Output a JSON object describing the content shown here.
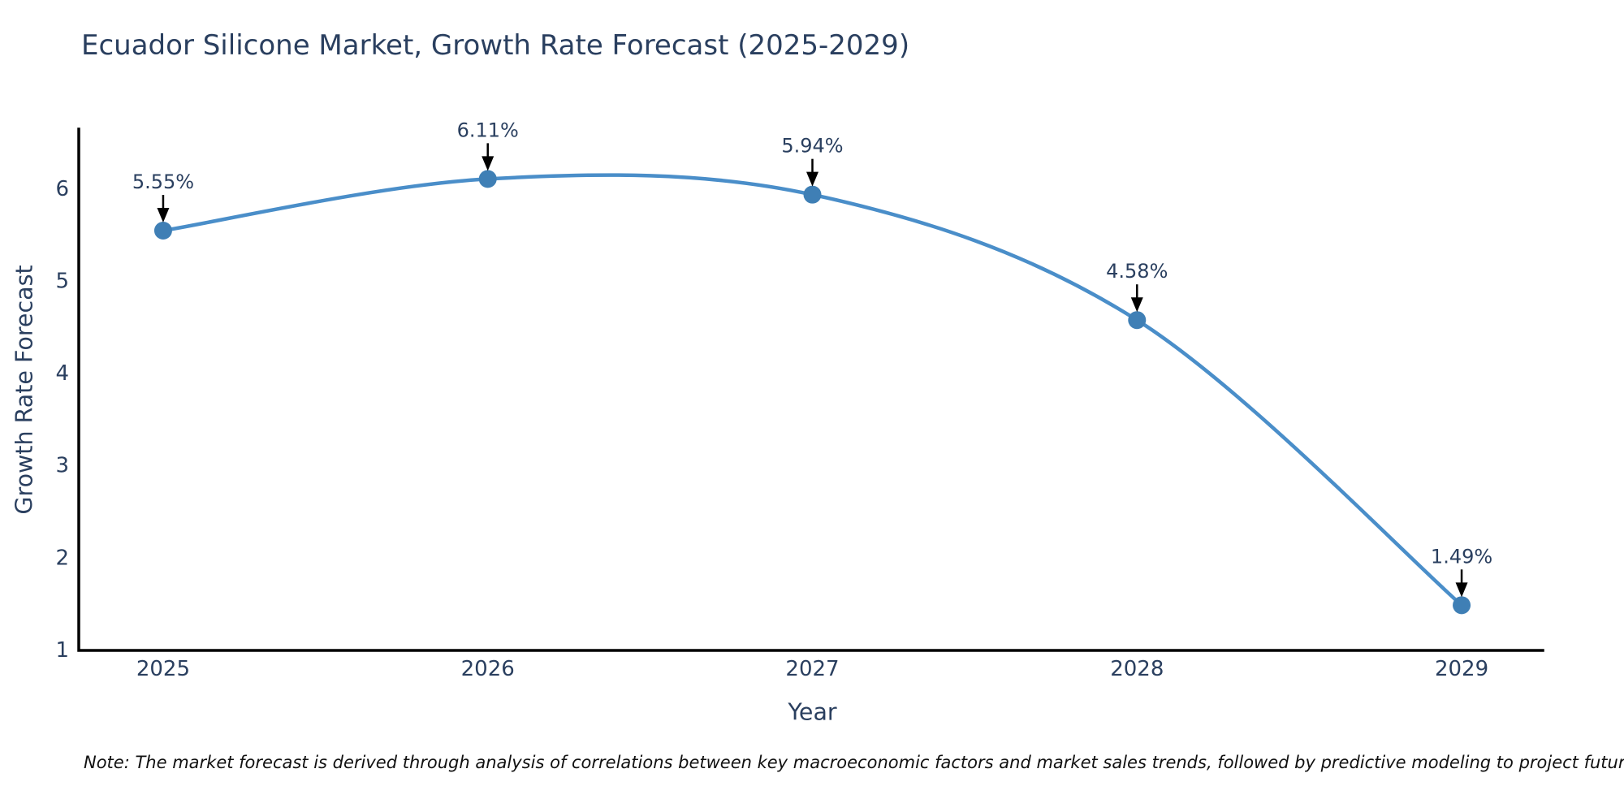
{
  "title": "Ecuador Silicone Market, Growth Rate Forecast (2025-2029)",
  "note": "Note: The market forecast is derived through analysis of correlations between key macroeconomic factors and market sales trends, followed by predictive modeling to project future sales.",
  "chart_data": {
    "type": "line",
    "line_shape": "spline",
    "title": "Ecuador Silicone Market, Growth Rate Forecast (2025-2029)",
    "xlabel": "Year",
    "ylabel": "Growth Rate Forecast",
    "x": [
      2025,
      2026,
      2027,
      2028,
      2029
    ],
    "y": [
      5.55,
      6.11,
      5.94,
      4.58,
      1.49
    ],
    "point_labels": [
      "5.55%",
      "6.11%",
      "5.94%",
      "4.58%",
      "1.49%"
    ],
    "xticks": [
      "2025",
      "2026",
      "2027",
      "2028",
      "2029"
    ],
    "yticks": [
      "1",
      "2",
      "3",
      "4",
      "5",
      "6"
    ],
    "ylim": [
      1,
      6.65
    ],
    "xlim": [
      2024.74,
      2029.25
    ],
    "grid": false,
    "legend": false,
    "annotations_have_arrows": true,
    "colors": {
      "line": "#4a8ec9",
      "marker": "#3f7fb5",
      "axis_line": "#000000",
      "text": "#2a3f5f",
      "annotation_text": "#2a3f5f",
      "annotation_arrow": "#000000",
      "background": "#ffffff"
    }
  }
}
